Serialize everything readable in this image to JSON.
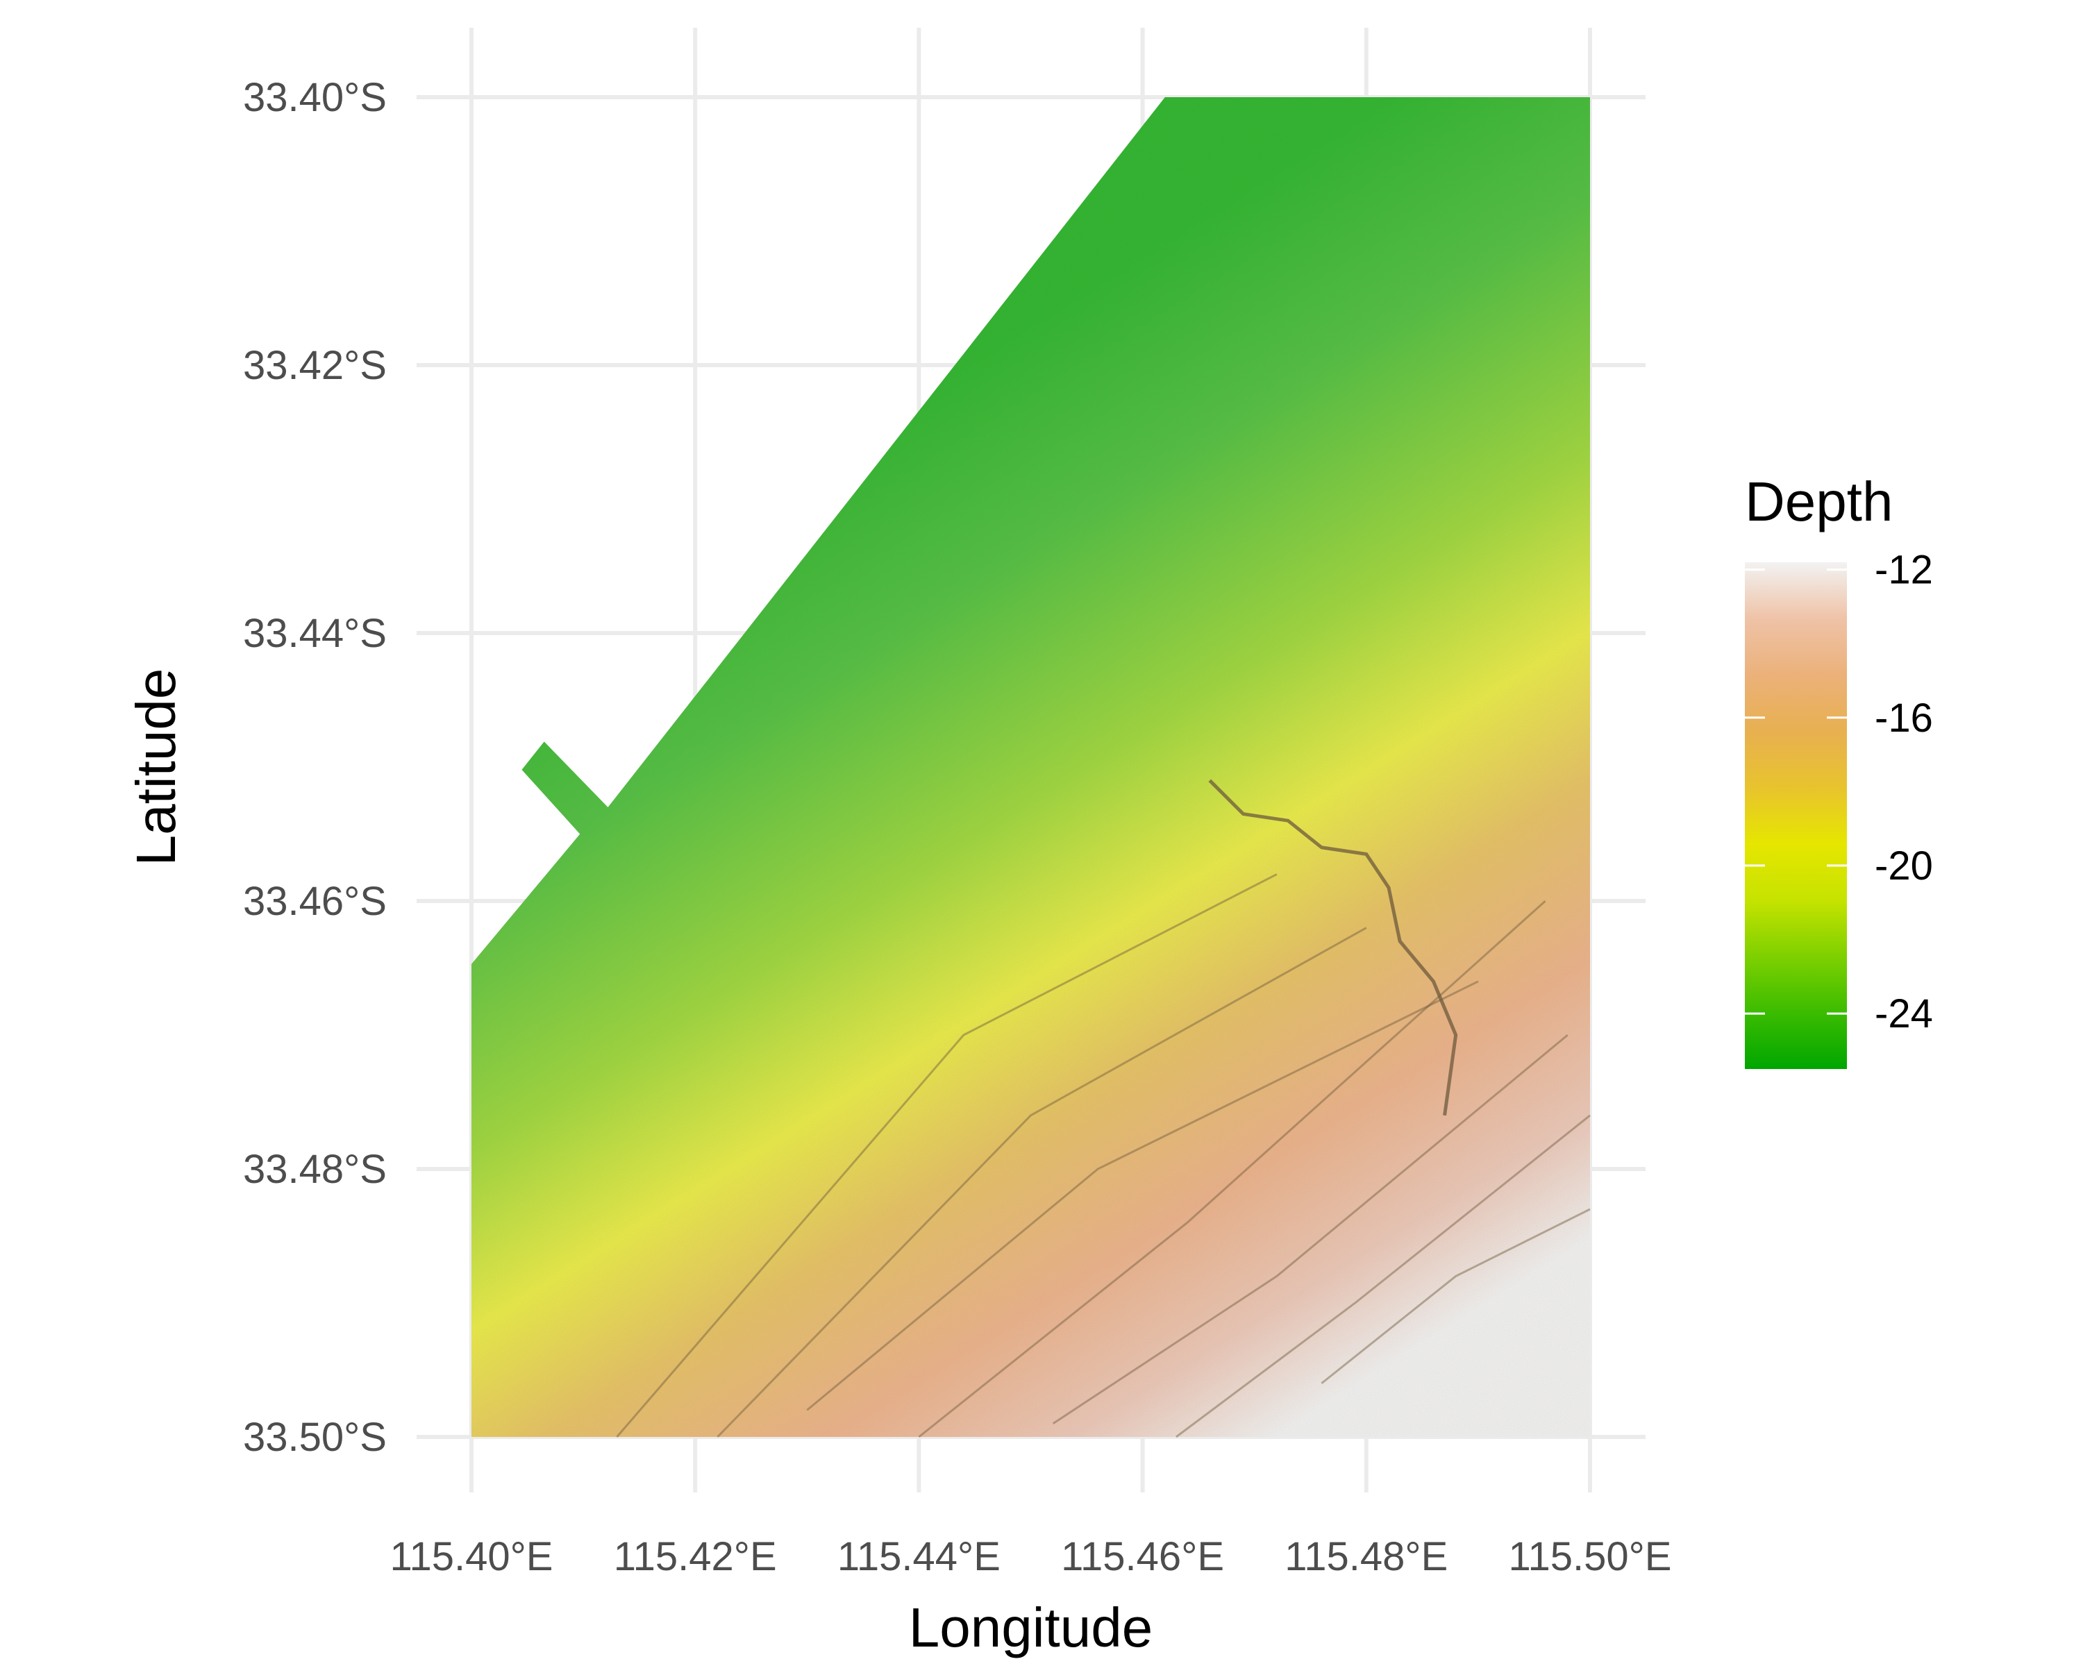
{
  "map": {
    "x_axis_title": "Longitude",
    "y_axis_title": "Latitude",
    "x_ticks": [
      {
        "value": 115.4,
        "label": "115.40°E"
      },
      {
        "value": 115.42,
        "label": "115.42°E"
      },
      {
        "value": 115.44,
        "label": "115.44°E"
      },
      {
        "value": 115.46,
        "label": "115.46°E"
      },
      {
        "value": 115.48,
        "label": "115.48°E"
      },
      {
        "value": 115.5,
        "label": "115.50°E"
      }
    ],
    "y_ticks": [
      {
        "value": -33.4,
        "label": "33.40°S"
      },
      {
        "value": -33.42,
        "label": "33.42°S"
      },
      {
        "value": -33.44,
        "label": "33.44°S"
      },
      {
        "value": -33.46,
        "label": "33.46°S"
      },
      {
        "value": -33.48,
        "label": "33.48°S"
      },
      {
        "value": -33.5,
        "label": "33.50°S"
      }
    ],
    "x_range": [
      115.4,
      115.5
    ],
    "y_range": [
      -33.5,
      -33.4
    ],
    "survey_area_polygon": [
      [
        115.462,
        -33.4
      ],
      [
        115.5,
        -33.4
      ],
      [
        115.5,
        -33.5
      ],
      [
        115.4,
        -33.5
      ],
      [
        115.4,
        -33.4647
      ],
      [
        115.4097,
        -33.455
      ],
      [
        115.4045,
        -33.4502
      ],
      [
        115.4065,
        -33.4481
      ],
      [
        115.4122,
        -33.453
      ]
    ],
    "depth_gradient_stops": [
      {
        "pos": 0.0,
        "depth": -25.5,
        "color": "#2fb32f"
      },
      {
        "pos": 0.18,
        "depth": -24.0,
        "color": "#52bd42"
      },
      {
        "pos": 0.38,
        "depth": -22.0,
        "color": "#9dd43e"
      },
      {
        "pos": 0.52,
        "depth": -20.0,
        "color": "#e6e848"
      },
      {
        "pos": 0.64,
        "depth": -18.0,
        "color": "#e3bf65"
      },
      {
        "pos": 0.78,
        "depth": -16.0,
        "color": "#e8b08a"
      },
      {
        "pos": 0.9,
        "depth": -14.0,
        "color": "#e8c5b6"
      },
      {
        "pos": 1.0,
        "depth": -12.0,
        "color": "#eeeeee"
      }
    ],
    "legend": {
      "title": "Depth",
      "min": -25.5,
      "max": -11.8,
      "ticks": [
        {
          "value": -12,
          "label": "-12"
        },
        {
          "value": -16,
          "label": "-16"
        },
        {
          "value": -20,
          "label": "-20"
        },
        {
          "value": -24,
          "label": "-24"
        }
      ],
      "colors": [
        "#00a600",
        "#3bbc00",
        "#7ed000",
        "#c6e300",
        "#e6e600",
        "#e8c32e",
        "#e8b051",
        "#ebb17a",
        "#efc3a8",
        "#f2f2f2"
      ]
    },
    "colors": {
      "grid": "#ebebeb",
      "tick_text": "#4d4d4d",
      "ridge": "#6e5a3c"
    }
  }
}
